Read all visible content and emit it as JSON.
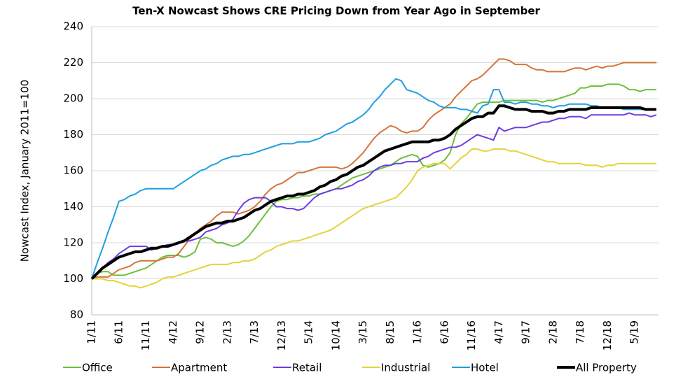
{
  "chart_data": {
    "type": "line",
    "title": "Ten-X Nowcast Shows CRE Pricing Down from Year Ago in September",
    "y_label": "Nowcast Index, January 2011=100",
    "ylim": [
      80,
      240
    ],
    "yticks": [
      80,
      100,
      120,
      140,
      160,
      180,
      200,
      220,
      240
    ],
    "grid": true,
    "categories": [
      "1/11",
      null,
      null,
      null,
      null,
      "6/11",
      null,
      null,
      null,
      null,
      "11/11",
      null,
      null,
      null,
      null,
      "4/12",
      null,
      null,
      null,
      null,
      "9/12",
      null,
      null,
      null,
      null,
      "2/13",
      null,
      null,
      null,
      null,
      "7/13",
      null,
      null,
      null,
      null,
      "12/13",
      null,
      null,
      null,
      null,
      "5/14",
      null,
      null,
      null,
      null,
      "10/14",
      null,
      null,
      null,
      null,
      "3/15",
      null,
      null,
      null,
      null,
      "8/15",
      null,
      null,
      null,
      null,
      "1/16",
      null,
      null,
      null,
      null,
      "6/16",
      null,
      null,
      null,
      null,
      "11/16",
      null,
      null,
      null,
      null,
      "4/17",
      null,
      null,
      null,
      null,
      "9/17",
      null,
      null,
      null,
      null,
      "2/18",
      null,
      null,
      null,
      null,
      "7/18",
      null,
      null,
      null,
      null,
      "12/18",
      null,
      null,
      null,
      null,
      "5/19",
      null,
      null,
      null,
      null
    ],
    "series": [
      {
        "name": "Office",
        "color": "#6cbf3a",
        "line_width": 2,
        "values": [
          100,
          103,
          104,
          104,
          102,
          102,
          102,
          103,
          104,
          105,
          106,
          108,
          110,
          112,
          113,
          113,
          113,
          112,
          113,
          115,
          122,
          123,
          122,
          120,
          120,
          119,
          118,
          119,
          121,
          124,
          128,
          132,
          136,
          140,
          143,
          144,
          144,
          145,
          145,
          146,
          146,
          147,
          147,
          148,
          149,
          150,
          152,
          154,
          156,
          157,
          158,
          159,
          160,
          161,
          162,
          163,
          165,
          167,
          168,
          169,
          168,
          163,
          162,
          163,
          164,
          166,
          170,
          180,
          186,
          189,
          193,
          197,
          198,
          198,
          198,
          198,
          199,
          199,
          199,
          199,
          199,
          199,
          199,
          198,
          199,
          199,
          200,
          201,
          202,
          203,
          206,
          206,
          207,
          207,
          207,
          208,
          208,
          208,
          207,
          205,
          205,
          204,
          205,
          205,
          205
        ]
      },
      {
        "name": "Apartment",
        "color": "#d4743b",
        "line_width": 2,
        "values": [
          100,
          101,
          101,
          101,
          103,
          105,
          106,
          107,
          109,
          110,
          110,
          110,
          110,
          111,
          112,
          112,
          114,
          118,
          122,
          125,
          128,
          130,
          132,
          135,
          137,
          137,
          137,
          136,
          137,
          138,
          140,
          143,
          147,
          150,
          152,
          153,
          155,
          157,
          159,
          159,
          160,
          161,
          162,
          162,
          162,
          162,
          161,
          162,
          164,
          167,
          170,
          174,
          178,
          181,
          183,
          185,
          184,
          182,
          181,
          182,
          182,
          184,
          188,
          191,
          193,
          195,
          197,
          201,
          204,
          207,
          210,
          211,
          213,
          216,
          219,
          222,
          222,
          221,
          219,
          219,
          219,
          217,
          216,
          216,
          215,
          215,
          215,
          215,
          216,
          217,
          217,
          216,
          217,
          218,
          217,
          218,
          218,
          219,
          220,
          220,
          220,
          220,
          220,
          220,
          220
        ]
      },
      {
        "name": "Retail",
        "color": "#6a3de0",
        "line_width": 2,
        "values": [
          100,
          103,
          106,
          109,
          111,
          114,
          116,
          118,
          118,
          118,
          118,
          116,
          117,
          118,
          119,
          119,
          120,
          121,
          121,
          122,
          123,
          126,
          127,
          128,
          130,
          131,
          133,
          138,
          142,
          144,
          145,
          145,
          145,
          143,
          140,
          140,
          139,
          139,
          138,
          139,
          142,
          145,
          147,
          148,
          149,
          150,
          150,
          151,
          152,
          154,
          155,
          157,
          160,
          162,
          163,
          163,
          164,
          164,
          165,
          165,
          165,
          167,
          168,
          170,
          171,
          172,
          173,
          173,
          174,
          176,
          178,
          180,
          179,
          178,
          177,
          184,
          182,
          183,
          184,
          184,
          184,
          185,
          186,
          187,
          187,
          188,
          189,
          189,
          190,
          190,
          190,
          189,
          191,
          191,
          191,
          191,
          191,
          191,
          191,
          192,
          191,
          191,
          191,
          190,
          191
        ]
      },
      {
        "name": "Industrial",
        "color": "#e6d23a",
        "line_width": 2,
        "values": [
          100,
          100,
          100,
          99,
          99,
          98,
          97,
          96,
          96,
          95,
          96,
          97,
          98,
          100,
          101,
          101,
          102,
          103,
          104,
          105,
          106,
          107,
          108,
          108,
          108,
          108,
          109,
          109,
          110,
          110,
          111,
          113,
          115,
          116,
          118,
          119,
          120,
          121,
          121,
          122,
          123,
          124,
          125,
          126,
          127,
          129,
          131,
          133,
          135,
          137,
          139,
          140,
          141,
          142,
          143,
          144,
          145,
          148,
          151,
          155,
          160,
          162,
          163,
          164,
          164,
          164,
          161,
          164,
          167,
          169,
          172,
          172,
          171,
          171,
          172,
          172,
          172,
          171,
          171,
          170,
          169,
          168,
          167,
          166,
          165,
          165,
          164,
          164,
          164,
          164,
          164,
          163,
          163,
          163,
          162,
          163,
          163,
          164,
          164,
          164,
          164,
          164,
          164,
          164,
          164
        ]
      },
      {
        "name": "Hotel",
        "color": "#1f9fe0",
        "line_width": 2,
        "values": [
          100,
          109,
          117,
          126,
          134,
          143,
          144,
          146,
          147,
          149,
          150,
          150,
          150,
          150,
          150,
          150,
          152,
          154,
          156,
          158,
          160,
          161,
          163,
          164,
          166,
          167,
          168,
          168,
          169,
          169,
          170,
          171,
          172,
          173,
          174,
          175,
          175,
          175,
          176,
          176,
          176,
          177,
          178,
          180,
          181,
          182,
          184,
          186,
          187,
          189,
          191,
          194,
          198,
          201,
          205,
          208,
          211,
          210,
          205,
          204,
          203,
          201,
          199,
          198,
          196,
          195,
          195,
          195,
          194,
          194,
          193,
          192,
          196,
          197,
          205,
          205,
          198,
          198,
          197,
          198,
          198,
          197,
          197,
          196,
          196,
          195,
          196,
          196,
          197,
          197,
          197,
          197,
          196,
          196,
          195,
          195,
          195,
          195,
          194,
          194,
          194,
          194,
          194,
          194,
          194
        ]
      },
      {
        "name": "All Property",
        "color": "#000000",
        "line_width": 4,
        "values": [
          100,
          103,
          106,
          108,
          110,
          112,
          113,
          114,
          115,
          115,
          116,
          117,
          117,
          118,
          118,
          119,
          120,
          121,
          123,
          125,
          127,
          129,
          130,
          131,
          131,
          132,
          132,
          133,
          134,
          136,
          138,
          139,
          141,
          143,
          144,
          145,
          146,
          146,
          147,
          147,
          148,
          149,
          151,
          152,
          154,
          155,
          157,
          158,
          160,
          162,
          163,
          165,
          167,
          169,
          171,
          172,
          173,
          174,
          175,
          176,
          176,
          176,
          176,
          177,
          177,
          178,
          180,
          183,
          185,
          187,
          189,
          190,
          190,
          192,
          192,
          196,
          196,
          195,
          194,
          194,
          194,
          193,
          193,
          193,
          192,
          192,
          193,
          193,
          194,
          194,
          194,
          194,
          195,
          195,
          195,
          195,
          195,
          195,
          195,
          195,
          195,
          195,
          194,
          194,
          194
        ]
      }
    ]
  }
}
